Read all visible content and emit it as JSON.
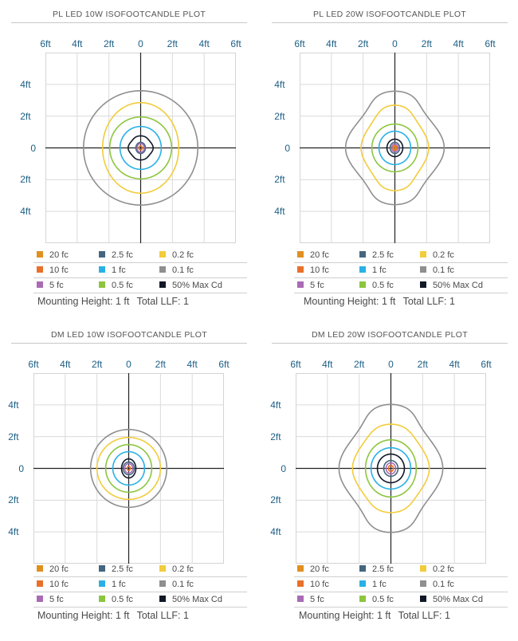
{
  "legend": [
    {
      "label": "20 fc",
      "color": "#e0901f"
    },
    {
      "label": "2.5 fc",
      "color": "#44667f"
    },
    {
      "label": "0.2 fc",
      "color": "#f2cc3c"
    },
    {
      "label": "10 fc",
      "color": "#e8702a"
    },
    {
      "label": "1 fc",
      "color": "#29b1e6"
    },
    {
      "label": "0.1 fc",
      "color": "#8f8f8f"
    },
    {
      "label": "5 fc",
      "color": "#a96bb5"
    },
    {
      "label": "0.5 fc",
      "color": "#8cc63e"
    },
    {
      "label": "50% Max Cd",
      "color": "#111827"
    }
  ],
  "footer": {
    "mounting": "Mounting Height: 1 ft",
    "llf": "Total LLF: 1"
  },
  "chart_data": [
    {
      "type": "isofootcandle",
      "title": "PL LED 10W ISOFOOTCANDLE PLOT",
      "x_ticks": [
        "6ft",
        "4ft",
        "2ft",
        "0",
        "2ft",
        "4ft",
        "6ft"
      ],
      "y_ticks": [
        "4ft",
        "2ft",
        "0",
        "2ft",
        "4ft"
      ],
      "xlim": [
        -6,
        6
      ],
      "ylim": [
        -6,
        6
      ],
      "grid": true,
      "contours": [
        {
          "label": "0.1 fc",
          "color": "#8f8f8f",
          "rx": 3.6,
          "ry": 3.6,
          "lobe": 0
        },
        {
          "label": "0.2 fc",
          "color": "#f2cc3c",
          "rx": 2.4,
          "ry": 2.85,
          "lobe": 0
        },
        {
          "label": "0.5 fc",
          "color": "#8cc63e",
          "rx": 1.95,
          "ry": 1.95,
          "lobe": 0
        },
        {
          "label": "1 fc",
          "color": "#29b1e6",
          "rx": 1.3,
          "ry": 1.35,
          "lobe": 0
        },
        {
          "label": "50% Max Cd",
          "color": "#111827",
          "rx": 0.75,
          "ry": 0.75,
          "lobe": 0.08
        },
        {
          "label": "2.5 fc",
          "color": "#44667f",
          "rx": 0.3,
          "ry": 0.35,
          "lobe": 0
        },
        {
          "label": "5 fc",
          "color": "#a96bb5",
          "rx": 0.22,
          "ry": 0.28,
          "lobe": 0
        },
        {
          "label": "10 fc",
          "color": "#e8702a",
          "rx": 0.1,
          "ry": 0.13,
          "lobe": 0
        }
      ]
    },
    {
      "type": "isofootcandle",
      "title": "PL LED 20W ISOFOOTCANDLE PLOT",
      "x_ticks": [
        "6ft",
        "4ft",
        "2ft",
        "0",
        "2ft",
        "4ft",
        "6ft"
      ],
      "y_ticks": [
        "4ft",
        "2ft",
        "0",
        "2ft",
        "4ft"
      ],
      "xlim": [
        -6,
        6
      ],
      "ylim": [
        -6,
        6
      ],
      "grid": true,
      "contours": [
        {
          "label": "0.1 fc",
          "color": "#8f8f8f",
          "rx": 2.85,
          "ry": 3.5,
          "lobe": 0.14
        },
        {
          "label": "0.2 fc",
          "color": "#f2cc3c",
          "rx": 2.0,
          "ry": 2.65,
          "lobe": 0.1
        },
        {
          "label": "0.5 fc",
          "color": "#8cc63e",
          "rx": 1.45,
          "ry": 1.5,
          "lobe": 0
        },
        {
          "label": "1 fc",
          "color": "#29b1e6",
          "rx": 1.0,
          "ry": 1.05,
          "lobe": 0
        },
        {
          "label": "50% Max Cd",
          "color": "#111827",
          "rx": 0.5,
          "ry": 0.55,
          "lobe": 0
        },
        {
          "label": "2.5 fc",
          "color": "#44667f",
          "rx": 0.3,
          "ry": 0.35,
          "lobe": 0
        },
        {
          "label": "5 fc",
          "color": "#a96bb5",
          "rx": 0.2,
          "ry": 0.25,
          "lobe": 0
        },
        {
          "label": "10 fc",
          "color": "#e8702a",
          "rx": 0.12,
          "ry": 0.15,
          "lobe": 0
        },
        {
          "label": "20 fc",
          "color": "#e0901f",
          "rx": 0.06,
          "ry": 0.08,
          "lobe": 0
        }
      ]
    },
    {
      "type": "isofootcandle",
      "title": "DM LED 10W ISOFOOTCANDLE PLOT",
      "x_ticks": [
        "6ft",
        "4ft",
        "2ft",
        "0",
        "2ft",
        "4ft",
        "6ft"
      ],
      "y_ticks": [
        "4ft",
        "2ft",
        "0",
        "2ft",
        "4ft"
      ],
      "xlim": [
        -6,
        6
      ],
      "ylim": [
        -6,
        6
      ],
      "grid": true,
      "contours": [
        {
          "label": "0.1 fc",
          "color": "#8f8f8f",
          "rx": 2.4,
          "ry": 2.45,
          "lobe": 0
        },
        {
          "label": "0.2 fc",
          "color": "#f2cc3c",
          "rx": 2.0,
          "ry": 1.95,
          "lobe": 0
        },
        {
          "label": "0.5 fc",
          "color": "#8cc63e",
          "rx": 1.45,
          "ry": 1.5,
          "lobe": 0
        },
        {
          "label": "1 fc",
          "color": "#29b1e6",
          "rx": 1.0,
          "ry": 1.05,
          "lobe": 0
        },
        {
          "label": "50% Max Cd",
          "color": "#111827",
          "rx": 0.45,
          "ry": 0.6,
          "lobe": 0
        },
        {
          "label": "2.5 fc",
          "color": "#44667f",
          "rx": 0.35,
          "ry": 0.4,
          "lobe": 0
        },
        {
          "label": "5 fc",
          "color": "#a96bb5",
          "rx": 0.25,
          "ry": 0.3,
          "lobe": 0
        },
        {
          "label": "10 fc",
          "color": "#e8702a",
          "rx": 0.1,
          "ry": 0.13,
          "lobe": 0
        }
      ]
    },
    {
      "type": "isofootcandle",
      "title": "DM LED 20W ISOFOOTCANDLE PLOT",
      "x_ticks": [
        "6ft",
        "4ft",
        "2ft",
        "0",
        "2ft",
        "4ft",
        "6ft"
      ],
      "y_ticks": [
        "4ft",
        "2ft",
        "0",
        "2ft",
        "4ft"
      ],
      "xlim": [
        -6,
        6
      ],
      "ylim": [
        -6,
        6
      ],
      "grid": true,
      "contours": [
        {
          "label": "0.1 fc",
          "color": "#8f8f8f",
          "rx": 3.0,
          "ry": 3.95,
          "lobe": 0.14
        },
        {
          "label": "0.2 fc",
          "color": "#f2cc3c",
          "rx": 2.3,
          "ry": 2.75,
          "lobe": 0.08
        },
        {
          "label": "0.5 fc",
          "color": "#8cc63e",
          "rx": 1.6,
          "ry": 1.8,
          "lobe": 0
        },
        {
          "label": "1 fc",
          "color": "#29b1e6",
          "rx": 1.25,
          "ry": 1.3,
          "lobe": 0
        },
        {
          "label": "50% Max Cd",
          "color": "#111827",
          "rx": 0.85,
          "ry": 0.9,
          "lobe": 0
        },
        {
          "label": "2.5 fc",
          "color": "#44667f",
          "rx": 0.45,
          "ry": 0.5,
          "lobe": 0
        },
        {
          "label": "5 fc",
          "color": "#a96bb5",
          "rx": 0.3,
          "ry": 0.35,
          "lobe": 0
        },
        {
          "label": "10 fc",
          "color": "#e8702a",
          "rx": 0.15,
          "ry": 0.2,
          "lobe": 0
        }
      ]
    }
  ]
}
